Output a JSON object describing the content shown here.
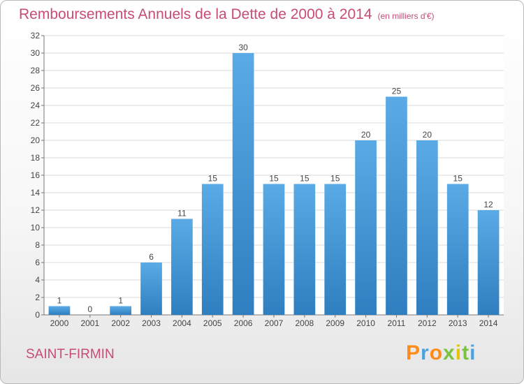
{
  "header": {
    "title": "Remboursements Annuels de la Dette de 2000 à 2014",
    "unit": "(en milliers d'€)"
  },
  "location": {
    "name": "SAINT-FIRMIN"
  },
  "brand": {
    "logo_text": "Proxiti",
    "letter_colors": [
      "#ff8c1a",
      "#4aa3df",
      "#ff8c1a",
      "#7cc242",
      "#e6c400",
      "#7cc242",
      "#4aa3df"
    ]
  },
  "colors": {
    "title": "#c84b78",
    "bar_light": "#5aaae6",
    "bar_dark": "#2f7fc0"
  },
  "chart_data": {
    "type": "bar",
    "categories": [
      "2000",
      "2001",
      "2002",
      "2003",
      "2004",
      "2005",
      "2006",
      "2007",
      "2008",
      "2009",
      "2010",
      "2011",
      "2012",
      "2013",
      "2014"
    ],
    "values": [
      1,
      0,
      1,
      6,
      11,
      15,
      30,
      15,
      15,
      15,
      20,
      25,
      20,
      15,
      12
    ],
    "ylim": [
      0,
      32
    ],
    "yticks": [
      0,
      2,
      4,
      6,
      8,
      10,
      12,
      14,
      16,
      18,
      20,
      22,
      24,
      26,
      28,
      30,
      32
    ],
    "grid": true,
    "xlabel": "",
    "ylabel": ""
  }
}
